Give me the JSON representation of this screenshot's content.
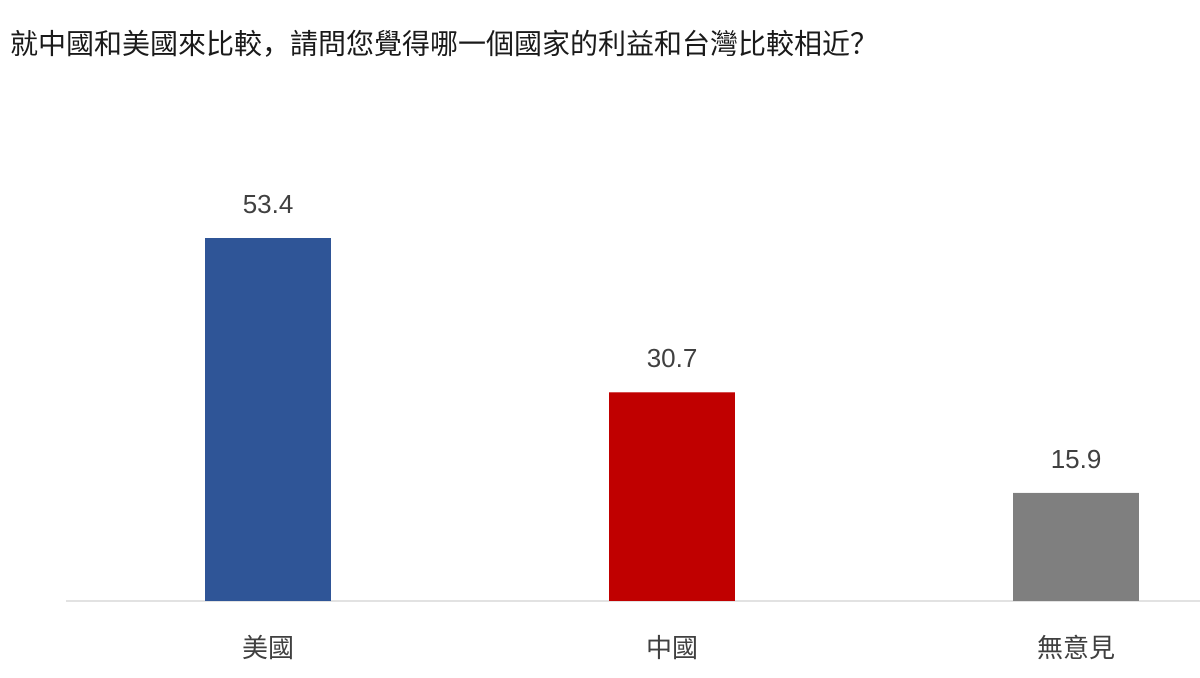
{
  "chart_data": {
    "type": "bar",
    "title": "就中國和美國來比較，請問您覺得哪一個國家的利益和台灣比較相近？",
    "categories": [
      "美國",
      "中國",
      "無意見"
    ],
    "values": [
      53.4,
      30.7,
      15.9
    ],
    "colors": [
      "#2f5597",
      "#c00000",
      "#7f7f7f"
    ]
  }
}
